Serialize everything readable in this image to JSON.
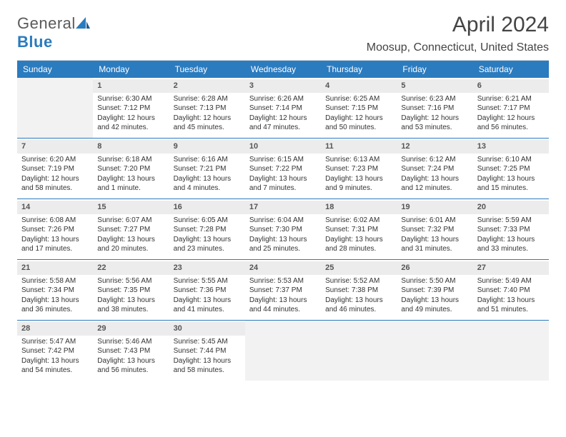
{
  "logo": {
    "text1": "General",
    "text2": "Blue"
  },
  "title": "April 2024",
  "location": "Moosup, Connecticut, United States",
  "dayNames": [
    "Sunday",
    "Monday",
    "Tuesday",
    "Wednesday",
    "Thursday",
    "Friday",
    "Saturday"
  ],
  "colors": {
    "headerBg": "#2b7bbf",
    "headerText": "#ffffff",
    "dayNumBg": "#ececec",
    "blankBg": "#f2f2f2",
    "weekBorder": "#2b7bbf"
  },
  "weeks": [
    [
      null,
      {
        "n": "1",
        "sr": "Sunrise: 6:30 AM",
        "ss": "Sunset: 7:12 PM",
        "d1": "Daylight: 12 hours",
        "d2": "and 42 minutes."
      },
      {
        "n": "2",
        "sr": "Sunrise: 6:28 AM",
        "ss": "Sunset: 7:13 PM",
        "d1": "Daylight: 12 hours",
        "d2": "and 45 minutes."
      },
      {
        "n": "3",
        "sr": "Sunrise: 6:26 AM",
        "ss": "Sunset: 7:14 PM",
        "d1": "Daylight: 12 hours",
        "d2": "and 47 minutes."
      },
      {
        "n": "4",
        "sr": "Sunrise: 6:25 AM",
        "ss": "Sunset: 7:15 PM",
        "d1": "Daylight: 12 hours",
        "d2": "and 50 minutes."
      },
      {
        "n": "5",
        "sr": "Sunrise: 6:23 AM",
        "ss": "Sunset: 7:16 PM",
        "d1": "Daylight: 12 hours",
        "d2": "and 53 minutes."
      },
      {
        "n": "6",
        "sr": "Sunrise: 6:21 AM",
        "ss": "Sunset: 7:17 PM",
        "d1": "Daylight: 12 hours",
        "d2": "and 56 minutes."
      }
    ],
    [
      {
        "n": "7",
        "sr": "Sunrise: 6:20 AM",
        "ss": "Sunset: 7:19 PM",
        "d1": "Daylight: 12 hours",
        "d2": "and 58 minutes."
      },
      {
        "n": "8",
        "sr": "Sunrise: 6:18 AM",
        "ss": "Sunset: 7:20 PM",
        "d1": "Daylight: 13 hours",
        "d2": "and 1 minute."
      },
      {
        "n": "9",
        "sr": "Sunrise: 6:16 AM",
        "ss": "Sunset: 7:21 PM",
        "d1": "Daylight: 13 hours",
        "d2": "and 4 minutes."
      },
      {
        "n": "10",
        "sr": "Sunrise: 6:15 AM",
        "ss": "Sunset: 7:22 PM",
        "d1": "Daylight: 13 hours",
        "d2": "and 7 minutes."
      },
      {
        "n": "11",
        "sr": "Sunrise: 6:13 AM",
        "ss": "Sunset: 7:23 PM",
        "d1": "Daylight: 13 hours",
        "d2": "and 9 minutes."
      },
      {
        "n": "12",
        "sr": "Sunrise: 6:12 AM",
        "ss": "Sunset: 7:24 PM",
        "d1": "Daylight: 13 hours",
        "d2": "and 12 minutes."
      },
      {
        "n": "13",
        "sr": "Sunrise: 6:10 AM",
        "ss": "Sunset: 7:25 PM",
        "d1": "Daylight: 13 hours",
        "d2": "and 15 minutes."
      }
    ],
    [
      {
        "n": "14",
        "sr": "Sunrise: 6:08 AM",
        "ss": "Sunset: 7:26 PM",
        "d1": "Daylight: 13 hours",
        "d2": "and 17 minutes."
      },
      {
        "n": "15",
        "sr": "Sunrise: 6:07 AM",
        "ss": "Sunset: 7:27 PM",
        "d1": "Daylight: 13 hours",
        "d2": "and 20 minutes."
      },
      {
        "n": "16",
        "sr": "Sunrise: 6:05 AM",
        "ss": "Sunset: 7:28 PM",
        "d1": "Daylight: 13 hours",
        "d2": "and 23 minutes."
      },
      {
        "n": "17",
        "sr": "Sunrise: 6:04 AM",
        "ss": "Sunset: 7:30 PM",
        "d1": "Daylight: 13 hours",
        "d2": "and 25 minutes."
      },
      {
        "n": "18",
        "sr": "Sunrise: 6:02 AM",
        "ss": "Sunset: 7:31 PM",
        "d1": "Daylight: 13 hours",
        "d2": "and 28 minutes."
      },
      {
        "n": "19",
        "sr": "Sunrise: 6:01 AM",
        "ss": "Sunset: 7:32 PM",
        "d1": "Daylight: 13 hours",
        "d2": "and 31 minutes."
      },
      {
        "n": "20",
        "sr": "Sunrise: 5:59 AM",
        "ss": "Sunset: 7:33 PM",
        "d1": "Daylight: 13 hours",
        "d2": "and 33 minutes."
      }
    ],
    [
      {
        "n": "21",
        "sr": "Sunrise: 5:58 AM",
        "ss": "Sunset: 7:34 PM",
        "d1": "Daylight: 13 hours",
        "d2": "and 36 minutes."
      },
      {
        "n": "22",
        "sr": "Sunrise: 5:56 AM",
        "ss": "Sunset: 7:35 PM",
        "d1": "Daylight: 13 hours",
        "d2": "and 38 minutes."
      },
      {
        "n": "23",
        "sr": "Sunrise: 5:55 AM",
        "ss": "Sunset: 7:36 PM",
        "d1": "Daylight: 13 hours",
        "d2": "and 41 minutes."
      },
      {
        "n": "24",
        "sr": "Sunrise: 5:53 AM",
        "ss": "Sunset: 7:37 PM",
        "d1": "Daylight: 13 hours",
        "d2": "and 44 minutes."
      },
      {
        "n": "25",
        "sr": "Sunrise: 5:52 AM",
        "ss": "Sunset: 7:38 PM",
        "d1": "Daylight: 13 hours",
        "d2": "and 46 minutes."
      },
      {
        "n": "26",
        "sr": "Sunrise: 5:50 AM",
        "ss": "Sunset: 7:39 PM",
        "d1": "Daylight: 13 hours",
        "d2": "and 49 minutes."
      },
      {
        "n": "27",
        "sr": "Sunrise: 5:49 AM",
        "ss": "Sunset: 7:40 PM",
        "d1": "Daylight: 13 hours",
        "d2": "and 51 minutes."
      }
    ],
    [
      {
        "n": "28",
        "sr": "Sunrise: 5:47 AM",
        "ss": "Sunset: 7:42 PM",
        "d1": "Daylight: 13 hours",
        "d2": "and 54 minutes."
      },
      {
        "n": "29",
        "sr": "Sunrise: 5:46 AM",
        "ss": "Sunset: 7:43 PM",
        "d1": "Daylight: 13 hours",
        "d2": "and 56 minutes."
      },
      {
        "n": "30",
        "sr": "Sunrise: 5:45 AM",
        "ss": "Sunset: 7:44 PM",
        "d1": "Daylight: 13 hours",
        "d2": "and 58 minutes."
      },
      null,
      null,
      null,
      null
    ]
  ]
}
